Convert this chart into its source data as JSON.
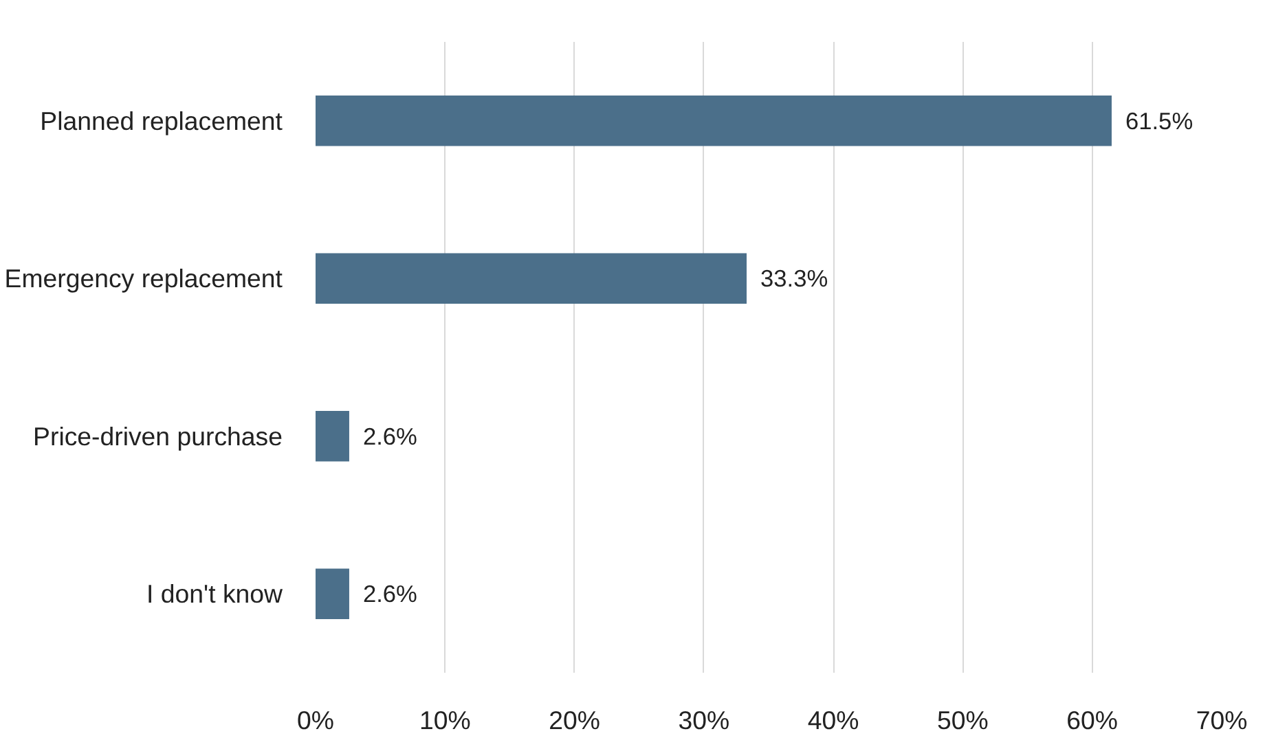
{
  "chart_data": {
    "type": "bar",
    "orientation": "horizontal",
    "categories": [
      "Planned replacement",
      "Emergency replacement",
      "Price-driven purchase",
      "I don't know"
    ],
    "values": [
      61.5,
      33.3,
      2.6,
      2.6
    ],
    "value_labels": [
      "61.5%",
      "33.3%",
      "2.6%",
      "2.6%"
    ],
    "color": "#4b6f8a",
    "xlim": [
      0,
      70
    ],
    "xticks": [
      {
        "value": 0,
        "label": "0%"
      },
      {
        "value": 10,
        "label": "10%"
      },
      {
        "value": 20,
        "label": "20%"
      },
      {
        "value": 30,
        "label": "30%"
      },
      {
        "value": 40,
        "label": "40%"
      },
      {
        "value": 50,
        "label": "50%"
      },
      {
        "value": 60,
        "label": "60%"
      },
      {
        "value": 70,
        "label": "70%"
      }
    ],
    "grid": "x"
  }
}
